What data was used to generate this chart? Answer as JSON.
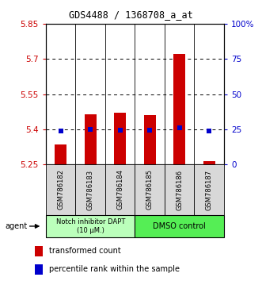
{
  "title": "GDS4488 / 1368708_a_at",
  "samples": [
    "GSM786182",
    "GSM786183",
    "GSM786184",
    "GSM786185",
    "GSM786186",
    "GSM786187"
  ],
  "red_values": [
    5.335,
    5.465,
    5.47,
    5.46,
    5.72,
    5.265
  ],
  "blue_values": [
    5.393,
    5.398,
    5.397,
    5.397,
    5.405,
    5.393
  ],
  "y_min": 5.25,
  "y_max": 5.85,
  "y_ticks_left": [
    5.25,
    5.4,
    5.55,
    5.7,
    5.85
  ],
  "y_ticks_right_pct": [
    0,
    25,
    50,
    75,
    100
  ],
  "y_right_labels": [
    "0",
    "25",
    "50",
    "75",
    "100%"
  ],
  "group1_label": "Notch inhibitor DAPT\n(10 μM.)",
  "group2_label": "DMSO control",
  "group1_color": "#bbffbb",
  "group2_color": "#55ee55",
  "bar_color": "#cc0000",
  "dot_color": "#0000cc",
  "baseline": 5.25,
  "agent_label": "agent",
  "legend1": "transformed count",
  "legend2": "percentile rank within the sample",
  "figsize": [
    3.31,
    3.54
  ],
  "dpi": 100
}
